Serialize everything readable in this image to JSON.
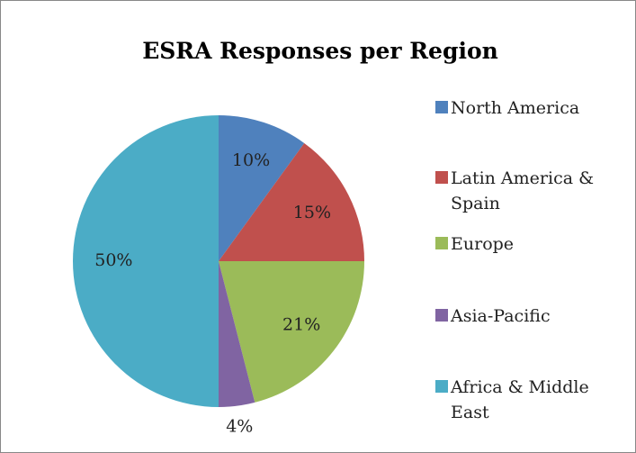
{
  "chart_data": {
    "type": "pie",
    "title": "ESRA Responses per Region",
    "categories": [
      "North America",
      "Latin America & Spain",
      "Europe",
      "Asia-Pacific",
      "Africa & Middle East"
    ],
    "values": [
      10,
      15,
      21,
      4,
      50
    ],
    "value_labels": [
      "10%",
      "15%",
      "21%",
      "4%",
      "50%"
    ],
    "colors": [
      "#4f81bd",
      "#c0504d",
      "#9bbb59",
      "#8064a2",
      "#4bacc6"
    ],
    "legend": "right"
  }
}
